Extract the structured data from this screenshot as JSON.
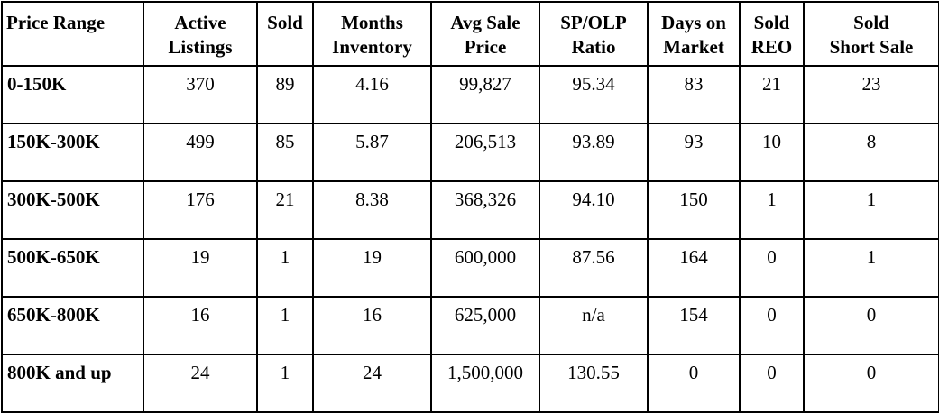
{
  "table": {
    "headers": [
      [
        "Price Range"
      ],
      [
        "Active",
        "Listings"
      ],
      [
        "Sold"
      ],
      [
        "Months",
        "Inventory"
      ],
      [
        "Avg Sale",
        "Price"
      ],
      [
        "SP/OLP",
        "Ratio"
      ],
      [
        "Days on",
        "Market"
      ],
      [
        "Sold",
        "REO"
      ],
      [
        "Sold",
        "Short Sale"
      ]
    ],
    "rows": [
      [
        "0-150K",
        "370",
        "89",
        "4.16",
        "99,827",
        "95.34",
        "83",
        "21",
        "23"
      ],
      [
        "150K-300K",
        "499",
        "85",
        "5.87",
        "206,513",
        "93.89",
        "93",
        "10",
        "8"
      ],
      [
        "300K-500K",
        "176",
        "21",
        "8.38",
        "368,326",
        "94.10",
        "150",
        "1",
        "1"
      ],
      [
        "500K-650K",
        "19",
        "1",
        "19",
        "600,000",
        "87.56",
        "164",
        "0",
        "1"
      ],
      [
        "650K-800K",
        "16",
        "1",
        "16",
        "625,000",
        "n/a",
        "154",
        "0",
        "0"
      ],
      [
        "800K and up",
        "24",
        "1",
        "24",
        "1,500,000",
        "130.55",
        "0",
        "0",
        "0"
      ]
    ]
  }
}
